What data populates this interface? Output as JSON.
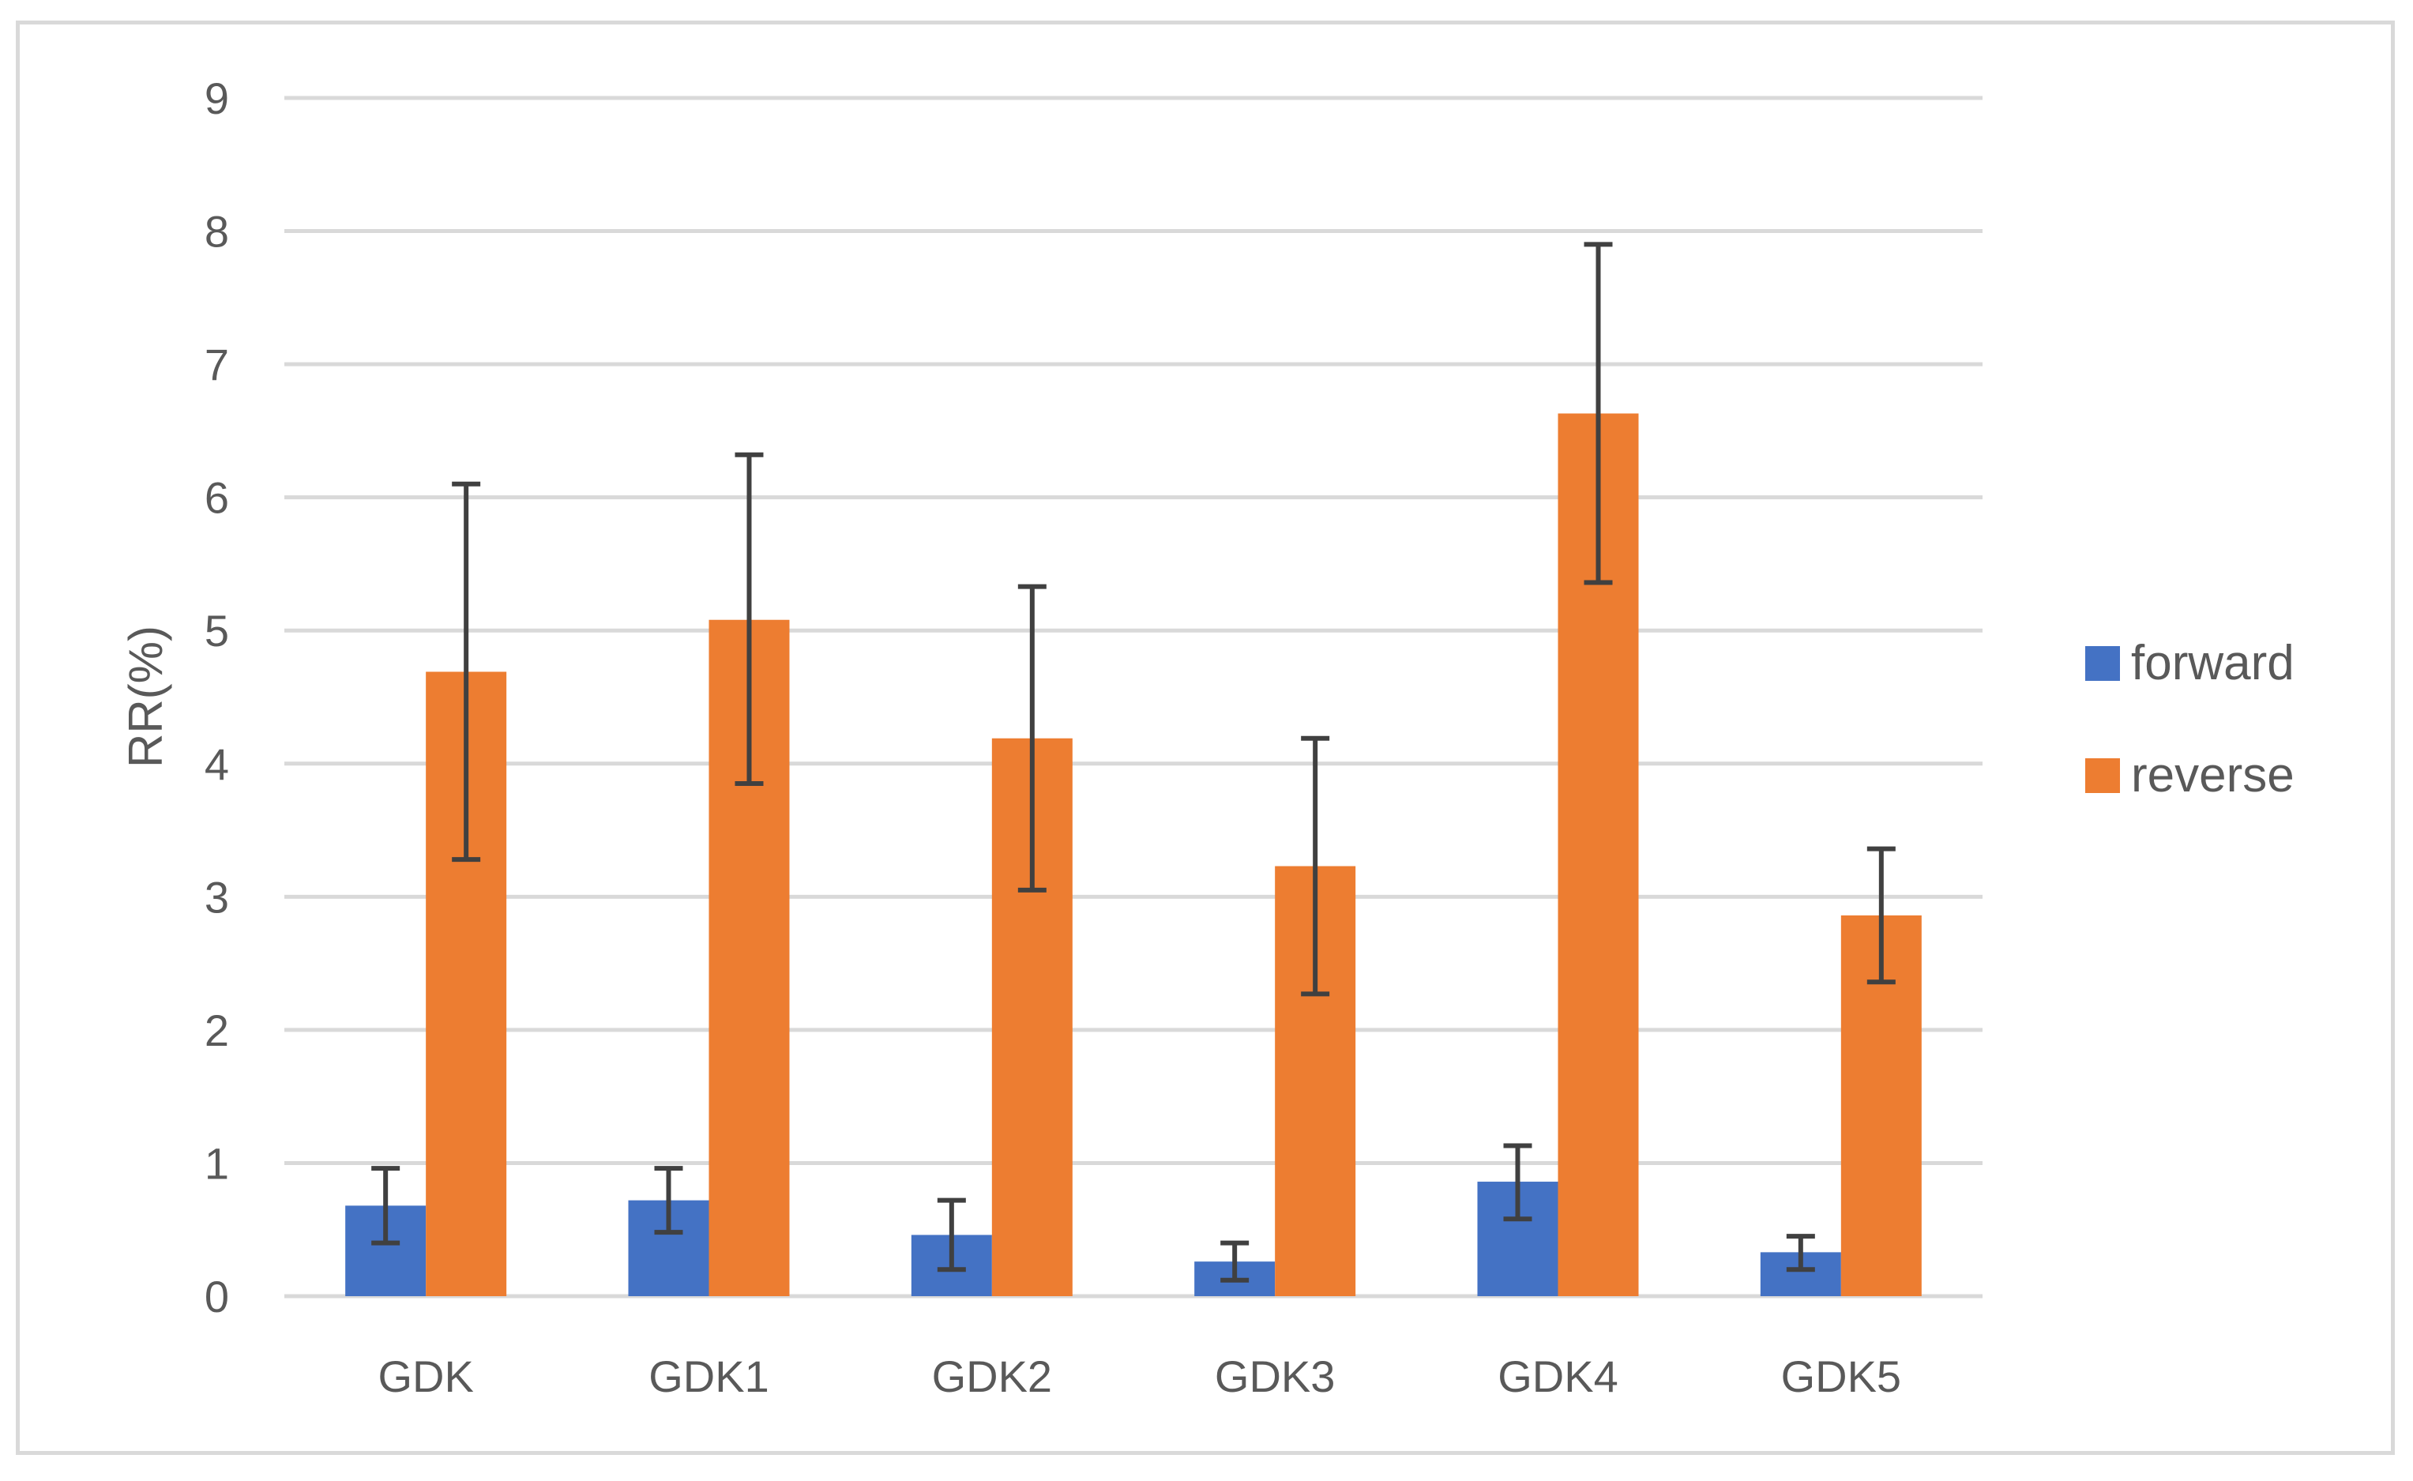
{
  "chart_data": {
    "type": "bar",
    "title": "",
    "xlabel": "",
    "ylabel": "RR(%)",
    "ylim": [
      0,
      9
    ],
    "yticks": [
      0,
      1,
      2,
      3,
      4,
      5,
      6,
      7,
      8,
      9
    ],
    "grid": true,
    "legend_position": "right",
    "categories": [
      "GDK",
      "GDK1",
      "GDK2",
      "GDK3",
      "GDK4",
      "GDK5"
    ],
    "series": [
      {
        "name": "forward",
        "color": "#4472c4",
        "values": [
          0.68,
          0.72,
          0.46,
          0.26,
          0.86,
          0.33
        ],
        "error_low": [
          0.4,
          0.48,
          0.2,
          0.12,
          0.58,
          0.2
        ],
        "error_high": [
          0.96,
          0.96,
          0.72,
          0.4,
          1.13,
          0.45
        ]
      },
      {
        "name": "reverse",
        "color": "#ed7d31",
        "values": [
          4.69,
          5.08,
          4.19,
          3.23,
          6.63,
          2.86
        ],
        "error_low": [
          3.28,
          3.85,
          3.05,
          2.27,
          5.36,
          2.36
        ],
        "error_high": [
          6.1,
          6.32,
          5.33,
          4.19,
          7.9,
          3.36
        ]
      }
    ],
    "error_bar_color": "#404040",
    "grid_color": "#d9d9d9"
  }
}
